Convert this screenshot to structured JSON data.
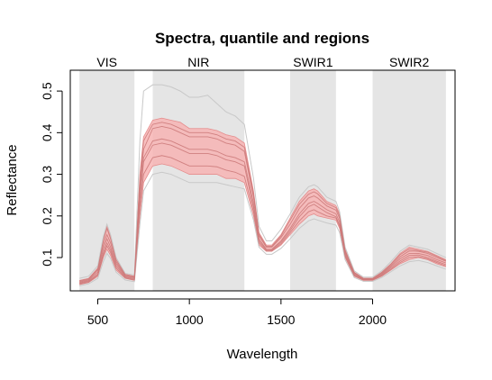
{
  "chart_data": {
    "type": "line",
    "title": "Spectra, quantile and regions",
    "xlabel": "Wavelength",
    "ylabel": "Reflectance",
    "xlim": [
      350,
      2450
    ],
    "ylim": [
      0.02,
      0.55
    ],
    "xticks": [
      500,
      1000,
      1500,
      2000
    ],
    "yticks": [
      0.1,
      0.2,
      0.3,
      0.4,
      0.5
    ],
    "regions": [
      {
        "name": "VIS",
        "start": 400,
        "end": 700
      },
      {
        "name": "NIR",
        "start": 800,
        "end": 1300
      },
      {
        "name": "SWIR1",
        "start": 1550,
        "end": 1800
      },
      {
        "name": "SWIR2",
        "start": 2000,
        "end": 2400
      }
    ],
    "x": [
      400,
      450,
      500,
      530,
      550,
      570,
      600,
      650,
      700,
      730,
      750,
      800,
      850,
      900,
      950,
      1000,
      1050,
      1100,
      1150,
      1200,
      1250,
      1300,
      1350,
      1380,
      1420,
      1450,
      1500,
      1550,
      1600,
      1650,
      1680,
      1700,
      1750,
      1800,
      1820,
      1850,
      1900,
      1950,
      2000,
      2050,
      2100,
      2150,
      2200,
      2250,
      2300,
      2350,
      2400
    ],
    "quantile_band": {
      "lower": [
        0.035,
        0.04,
        0.055,
        0.1,
        0.12,
        0.105,
        0.07,
        0.05,
        0.045,
        0.2,
        0.28,
        0.32,
        0.325,
        0.32,
        0.31,
        0.3,
        0.3,
        0.3,
        0.3,
        0.29,
        0.29,
        0.28,
        0.2,
        0.13,
        0.115,
        0.115,
        0.13,
        0.155,
        0.18,
        0.2,
        0.205,
        0.2,
        0.195,
        0.19,
        0.17,
        0.1,
        0.055,
        0.045,
        0.045,
        0.055,
        0.07,
        0.085,
        0.095,
        0.1,
        0.095,
        0.085,
        0.078
      ],
      "upper": [
        0.045,
        0.05,
        0.075,
        0.145,
        0.175,
        0.15,
        0.1,
        0.06,
        0.055,
        0.3,
        0.39,
        0.43,
        0.435,
        0.43,
        0.425,
        0.41,
        0.41,
        0.41,
        0.405,
        0.395,
        0.39,
        0.375,
        0.26,
        0.16,
        0.13,
        0.13,
        0.155,
        0.195,
        0.235,
        0.26,
        0.265,
        0.26,
        0.235,
        0.225,
        0.205,
        0.12,
        0.065,
        0.05,
        0.05,
        0.065,
        0.085,
        0.11,
        0.125,
        0.12,
        0.115,
        0.105,
        0.095
      ]
    },
    "series": [
      {
        "values": [
          0.04,
          0.045,
          0.065,
          0.12,
          0.145,
          0.125,
          0.085,
          0.055,
          0.05,
          0.25,
          0.34,
          0.38,
          0.385,
          0.38,
          0.37,
          0.36,
          0.36,
          0.36,
          0.355,
          0.345,
          0.34,
          0.33,
          0.23,
          0.145,
          0.12,
          0.12,
          0.14,
          0.17,
          0.205,
          0.23,
          0.235,
          0.23,
          0.215,
          0.205,
          0.185,
          0.11,
          0.06,
          0.048,
          0.048,
          0.06,
          0.078,
          0.097,
          0.11,
          0.11,
          0.105,
          0.095,
          0.087
        ]
      },
      {
        "values": [
          0.038,
          0.043,
          0.06,
          0.11,
          0.135,
          0.118,
          0.08,
          0.053,
          0.048,
          0.24,
          0.33,
          0.37,
          0.375,
          0.37,
          0.36,
          0.35,
          0.35,
          0.35,
          0.345,
          0.335,
          0.33,
          0.32,
          0.22,
          0.14,
          0.118,
          0.118,
          0.137,
          0.165,
          0.198,
          0.222,
          0.228,
          0.222,
          0.208,
          0.198,
          0.178,
          0.106,
          0.058,
          0.047,
          0.047,
          0.058,
          0.075,
          0.092,
          0.105,
          0.106,
          0.1,
          0.091,
          0.083
        ]
      },
      {
        "values": [
          0.042,
          0.047,
          0.07,
          0.13,
          0.155,
          0.135,
          0.09,
          0.057,
          0.052,
          0.27,
          0.36,
          0.41,
          0.415,
          0.41,
          0.4,
          0.39,
          0.39,
          0.39,
          0.385,
          0.375,
          0.37,
          0.355,
          0.245,
          0.152,
          0.125,
          0.125,
          0.148,
          0.18,
          0.218,
          0.243,
          0.248,
          0.243,
          0.224,
          0.214,
          0.194,
          0.114,
          0.062,
          0.049,
          0.049,
          0.062,
          0.081,
          0.102,
          0.116,
          0.115,
          0.11,
          0.1,
          0.091
        ]
      },
      {
        "values": [
          0.044,
          0.049,
          0.072,
          0.14,
          0.17,
          0.145,
          0.095,
          0.059,
          0.054,
          0.29,
          0.38,
          0.42,
          0.425,
          0.42,
          0.41,
          0.4,
          0.4,
          0.4,
          0.395,
          0.385,
          0.38,
          0.365,
          0.252,
          0.156,
          0.127,
          0.127,
          0.152,
          0.19,
          0.228,
          0.252,
          0.258,
          0.253,
          0.23,
          0.22,
          0.2,
          0.117,
          0.064,
          0.05,
          0.05,
          0.064,
          0.084,
          0.107,
          0.121,
          0.117,
          0.113,
          0.103,
          0.093
        ]
      },
      {
        "values": [
          0.036,
          0.041,
          0.058,
          0.105,
          0.128,
          0.112,
          0.075,
          0.051,
          0.046,
          0.22,
          0.3,
          0.34,
          0.345,
          0.34,
          0.33,
          0.32,
          0.32,
          0.32,
          0.318,
          0.31,
          0.305,
          0.295,
          0.21,
          0.135,
          0.116,
          0.116,
          0.133,
          0.16,
          0.188,
          0.21,
          0.215,
          0.21,
          0.2,
          0.195,
          0.175,
          0.103,
          0.056,
          0.046,
          0.046,
          0.056,
          0.072,
          0.088,
          0.1,
          0.102,
          0.097,
          0.088,
          0.08
        ]
      }
    ],
    "outlier_series": [
      {
        "values": [
          0.05,
          0.055,
          0.08,
          0.15,
          0.18,
          0.155,
          0.1,
          0.062,
          0.058,
          0.38,
          0.5,
          0.515,
          0.515,
          0.51,
          0.5,
          0.485,
          0.485,
          0.49,
          0.47,
          0.45,
          0.44,
          0.42,
          0.29,
          0.175,
          0.14,
          0.14,
          0.168,
          0.205,
          0.245,
          0.27,
          0.275,
          0.27,
          0.245,
          0.235,
          0.21,
          0.125,
          0.068,
          0.053,
          0.053,
          0.068,
          0.09,
          0.115,
          0.13,
          0.125,
          0.12,
          0.11,
          0.1
        ]
      },
      {
        "values": [
          0.032,
          0.037,
          0.05,
          0.09,
          0.11,
          0.098,
          0.065,
          0.046,
          0.042,
          0.18,
          0.26,
          0.3,
          0.305,
          0.3,
          0.29,
          0.28,
          0.28,
          0.28,
          0.28,
          0.275,
          0.27,
          0.265,
          0.19,
          0.125,
          0.108,
          0.108,
          0.122,
          0.145,
          0.17,
          0.188,
          0.193,
          0.19,
          0.183,
          0.178,
          0.16,
          0.095,
          0.052,
          0.043,
          0.043,
          0.052,
          0.066,
          0.08,
          0.09,
          0.093,
          0.088,
          0.08,
          0.072
        ]
      }
    ],
    "colors": {
      "region_fill": "#e5e5e5",
      "band_fill": "#f7b4b4",
      "band_edge": "#e58c8c",
      "series_line": "#cc7a7a",
      "outlier_line": "#c8c8c8",
      "axis": "#000000"
    },
    "grid": false
  }
}
